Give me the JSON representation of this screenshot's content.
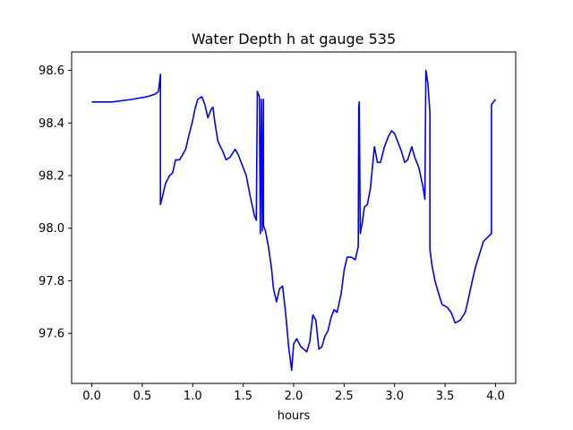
{
  "chart_data": {
    "type": "line",
    "title": "Water Depth h at gauge 535",
    "xlabel": "hours",
    "ylabel": "",
    "xlim": [
      -0.2,
      4.2
    ],
    "ylim": [
      97.41,
      98.67
    ],
    "xticks": [
      0.0,
      0.5,
      1.0,
      1.5,
      2.0,
      2.5,
      3.0,
      3.5,
      4.0
    ],
    "xtick_labels": [
      "0.0",
      "0.5",
      "1.0",
      "1.5",
      "2.0",
      "2.5",
      "3.0",
      "3.5",
      "4.0"
    ],
    "yticks": [
      97.6,
      97.8,
      98.0,
      98.2,
      98.4,
      98.6
    ],
    "ytick_labels": [
      "97.6",
      "97.8",
      "98.0",
      "98.2",
      "98.4",
      "98.6"
    ],
    "grid": false,
    "series": [
      {
        "color": "#0000ff",
        "points": [
          [
            0.0,
            98.48
          ],
          [
            0.2,
            98.48
          ],
          [
            0.4,
            98.49
          ],
          [
            0.55,
            98.5
          ],
          [
            0.63,
            98.51
          ],
          [
            0.66,
            98.52
          ],
          [
            0.68,
            98.585
          ],
          [
            0.68,
            98.09
          ],
          [
            0.7,
            98.12
          ],
          [
            0.73,
            98.17
          ],
          [
            0.77,
            98.2
          ],
          [
            0.8,
            98.21
          ],
          [
            0.83,
            98.26
          ],
          [
            0.87,
            98.26
          ],
          [
            0.9,
            98.28
          ],
          [
            0.93,
            98.3
          ],
          [
            0.96,
            98.35
          ],
          [
            1.0,
            98.41
          ],
          [
            1.02,
            98.45
          ],
          [
            1.05,
            98.49
          ],
          [
            1.09,
            98.5
          ],
          [
            1.12,
            98.47
          ],
          [
            1.15,
            98.42
          ],
          [
            1.18,
            98.45
          ],
          [
            1.2,
            98.46
          ],
          [
            1.22,
            98.4
          ],
          [
            1.25,
            98.33
          ],
          [
            1.3,
            98.29
          ],
          [
            1.33,
            98.26
          ],
          [
            1.37,
            98.27
          ],
          [
            1.42,
            98.3
          ],
          [
            1.45,
            98.28
          ],
          [
            1.48,
            98.25
          ],
          [
            1.53,
            98.2
          ],
          [
            1.57,
            98.12
          ],
          [
            1.61,
            98.05
          ],
          [
            1.63,
            98.03
          ],
          [
            1.64,
            98.52
          ],
          [
            1.66,
            98.5
          ],
          [
            1.67,
            97.98
          ],
          [
            1.68,
            98.49
          ],
          [
            1.69,
            97.99
          ],
          [
            1.7,
            98.49
          ],
          [
            1.7,
            98.01
          ],
          [
            1.72,
            97.99
          ],
          [
            1.75,
            97.93
          ],
          [
            1.78,
            97.85
          ],
          [
            1.8,
            97.77
          ],
          [
            1.83,
            97.72
          ],
          [
            1.86,
            97.77
          ],
          [
            1.89,
            97.78
          ],
          [
            1.92,
            97.68
          ],
          [
            1.95,
            97.55
          ],
          [
            1.98,
            97.46
          ],
          [
            2.0,
            97.56
          ],
          [
            2.03,
            97.58
          ],
          [
            2.07,
            97.55
          ],
          [
            2.1,
            97.54
          ],
          [
            2.13,
            97.53
          ],
          [
            2.16,
            97.57
          ],
          [
            2.19,
            97.67
          ],
          [
            2.22,
            97.65
          ],
          [
            2.25,
            97.54
          ],
          [
            2.28,
            97.55
          ],
          [
            2.31,
            97.59
          ],
          [
            2.34,
            97.61
          ],
          [
            2.37,
            97.66
          ],
          [
            2.4,
            97.69
          ],
          [
            2.43,
            97.68
          ],
          [
            2.47,
            97.75
          ],
          [
            2.5,
            97.84
          ],
          [
            2.53,
            97.89
          ],
          [
            2.57,
            97.89
          ],
          [
            2.61,
            97.88
          ],
          [
            2.64,
            97.93
          ],
          [
            2.645,
            98.46
          ],
          [
            2.65,
            98.48
          ],
          [
            2.66,
            97.98
          ],
          [
            2.68,
            98.02
          ],
          [
            2.7,
            98.08
          ],
          [
            2.73,
            98.09
          ],
          [
            2.76,
            98.15
          ],
          [
            2.8,
            98.31
          ],
          [
            2.83,
            98.25
          ],
          [
            2.86,
            98.25
          ],
          [
            2.9,
            98.31
          ],
          [
            2.94,
            98.35
          ],
          [
            2.97,
            98.37
          ],
          [
            3.0,
            98.36
          ],
          [
            3.03,
            98.33
          ],
          [
            3.07,
            98.29
          ],
          [
            3.1,
            98.25
          ],
          [
            3.13,
            98.26
          ],
          [
            3.17,
            98.31
          ],
          [
            3.2,
            98.27
          ],
          [
            3.24,
            98.23
          ],
          [
            3.28,
            98.16
          ],
          [
            3.3,
            98.11
          ],
          [
            3.31,
            98.6
          ],
          [
            3.33,
            98.55
          ],
          [
            3.35,
            98.44
          ],
          [
            3.35,
            97.92
          ],
          [
            3.37,
            97.86
          ],
          [
            3.4,
            97.8
          ],
          [
            3.43,
            97.76
          ],
          [
            3.47,
            97.71
          ],
          [
            3.52,
            97.7
          ],
          [
            3.56,
            97.68
          ],
          [
            3.6,
            97.64
          ],
          [
            3.65,
            97.65
          ],
          [
            3.7,
            97.68
          ],
          [
            3.73,
            97.73
          ],
          [
            3.77,
            97.8
          ],
          [
            3.8,
            97.85
          ],
          [
            3.84,
            97.9
          ],
          [
            3.88,
            97.95
          ],
          [
            3.96,
            97.98
          ],
          [
            3.96,
            98.47
          ],
          [
            4.0,
            98.49
          ]
        ]
      }
    ]
  }
}
